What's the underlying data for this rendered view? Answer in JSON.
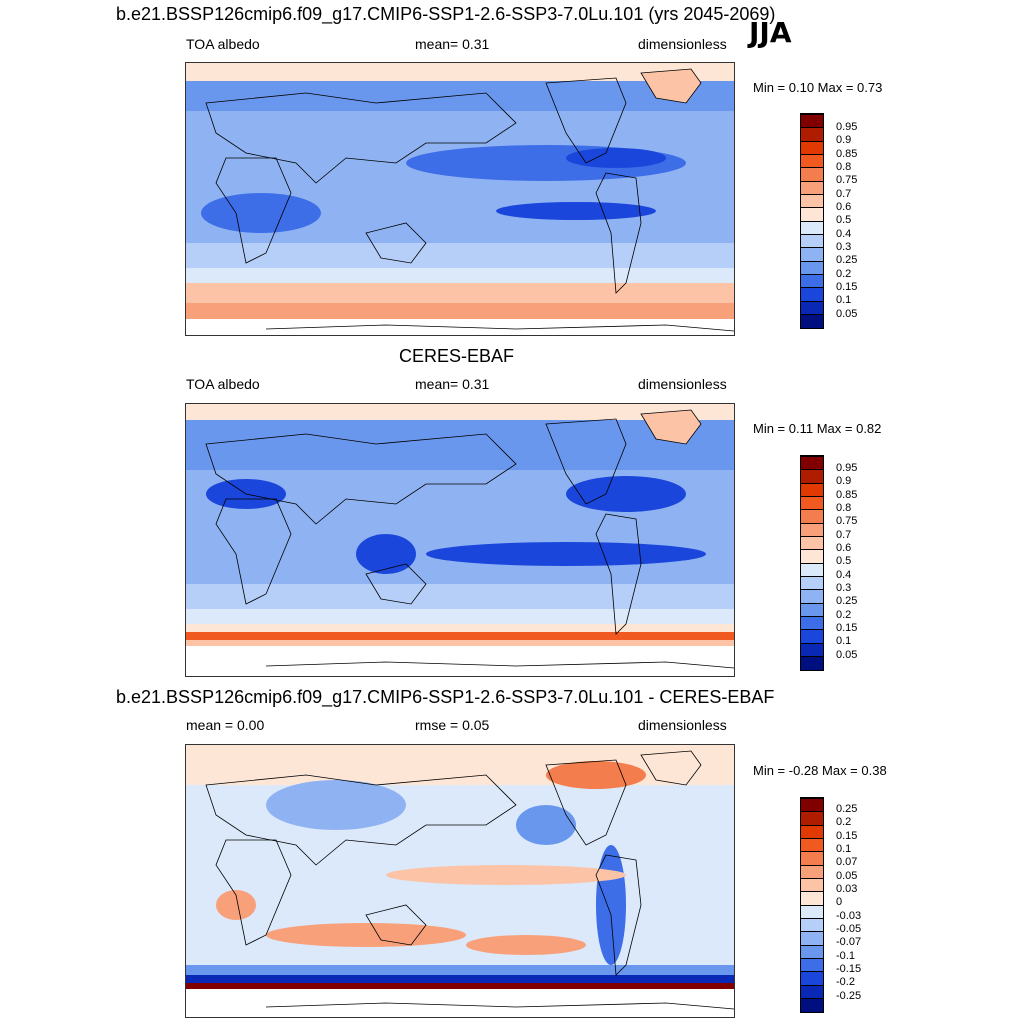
{
  "panels": [
    {
      "title": "b.e21.BSSP126cmip6.f09_g17.CMIP6-SSP1-2.6-SSP3-7.0Lu.101 (yrs 2045-2069)",
      "left_label": "TOA albedo",
      "center_label": "mean=   0.31",
      "right_label": "dimensionless",
      "minmax": "Min =   0.10 Max =   0.73",
      "colorbar": [
        "0.95",
        "0.9",
        "0.85",
        "0.8",
        "0.75",
        "0.7",
        "0.6",
        "0.5",
        "0.4",
        "0.3",
        "0.25",
        "0.2",
        "0.15",
        "0.1",
        "0.05"
      ]
    },
    {
      "title": "CERES-EBAF",
      "left_label": "TOA albedo",
      "center_label": "mean=   0.31",
      "right_label": "dimensionless",
      "minmax": "Min =   0.11 Max =   0.82",
      "colorbar": [
        "0.95",
        "0.9",
        "0.85",
        "0.8",
        "0.75",
        "0.7",
        "0.6",
        "0.5",
        "0.4",
        "0.3",
        "0.25",
        "0.2",
        "0.15",
        "0.1",
        "0.05"
      ]
    },
    {
      "title": "b.e21.BSSP126cmip6.f09_g17.CMIP6-SSP1-2.6-SSP3-7.0Lu.101 - CERES-EBAF",
      "left_label": "mean =   0.00",
      "center_label": "rmse =   0.05",
      "right_label": "dimensionless",
      "minmax": "Min =  -0.28 Max =   0.38",
      "colorbar": [
        "0.25",
        "0.2",
        "0.15",
        "0.1",
        "0.07",
        "0.05",
        "0.03",
        "0",
        "-0.03",
        "-0.05",
        "-0.07",
        "-0.1",
        "-0.15",
        "-0.2",
        "-0.25"
      ]
    }
  ],
  "season": "JJA",
  "colors": {
    "scale": [
      "#800000",
      "#b01c00",
      "#e03a00",
      "#f05a20",
      "#f47d4d",
      "#f8a07a",
      "#fcc3a6",
      "#fde6d6",
      "#dce9fb",
      "#b6cff8",
      "#8fb3f2",
      "#6a97ee",
      "#3d6ee8",
      "#1a46db",
      "#0828b5",
      "#000f80"
    ]
  }
}
